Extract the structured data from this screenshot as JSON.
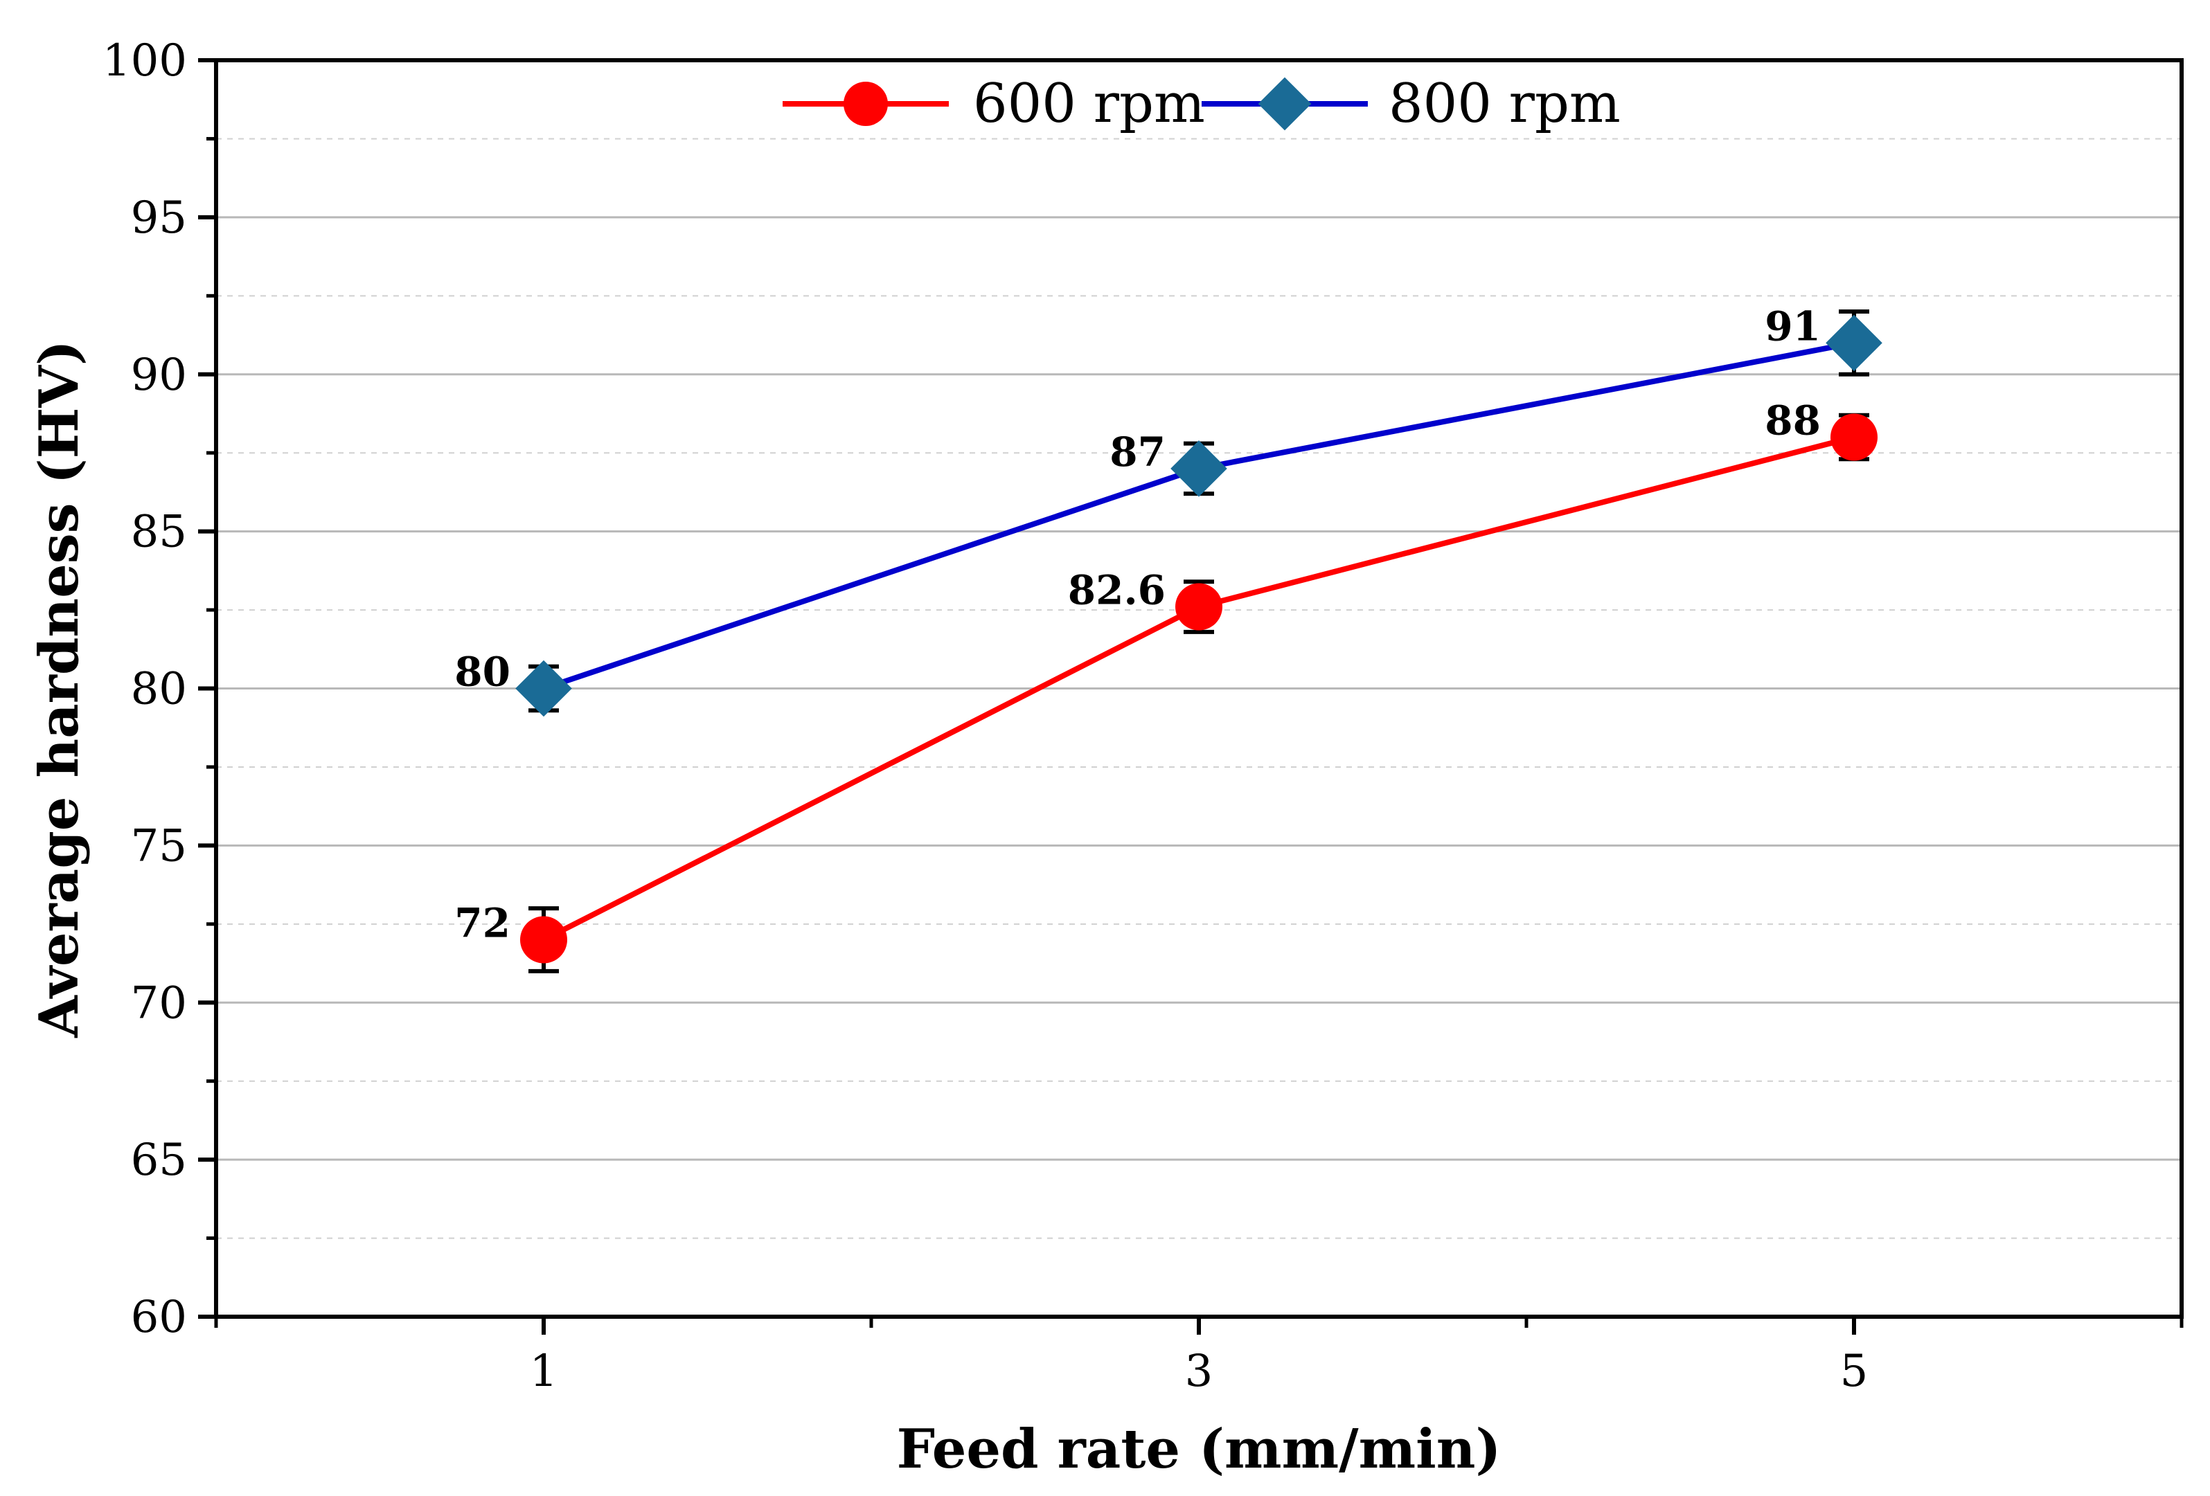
{
  "chart_data": {
    "type": "line",
    "title": "",
    "xlabel": "Feed rate (mm/min)",
    "ylabel": "Average hardness (HV)",
    "xlim": [
      0,
      6
    ],
    "ylim": [
      60,
      100
    ],
    "x": [
      1,
      3,
      5
    ],
    "x_ticks": [
      "1",
      "3",
      "5"
    ],
    "y_ticks": [
      "60",
      "65",
      "70",
      "75",
      "80",
      "85",
      "90",
      "95",
      "100"
    ],
    "grid": true,
    "legend_position": "top-center",
    "series": [
      {
        "name": "600 rpm",
        "color": "#ff0000",
        "marker": "circle",
        "values": [
          72,
          82.6,
          88
        ],
        "errors": [
          1.0,
          0.8,
          0.7
        ],
        "labels": [
          "72",
          "82.6",
          "88"
        ]
      },
      {
        "name": "800 rpm",
        "color": "#0000cc",
        "marker_color": "#1a6b96",
        "marker": "diamond",
        "values": [
          80,
          87,
          91
        ],
        "errors": [
          0.7,
          0.8,
          1.0
        ],
        "labels": [
          "80",
          "87",
          "91"
        ]
      }
    ]
  }
}
